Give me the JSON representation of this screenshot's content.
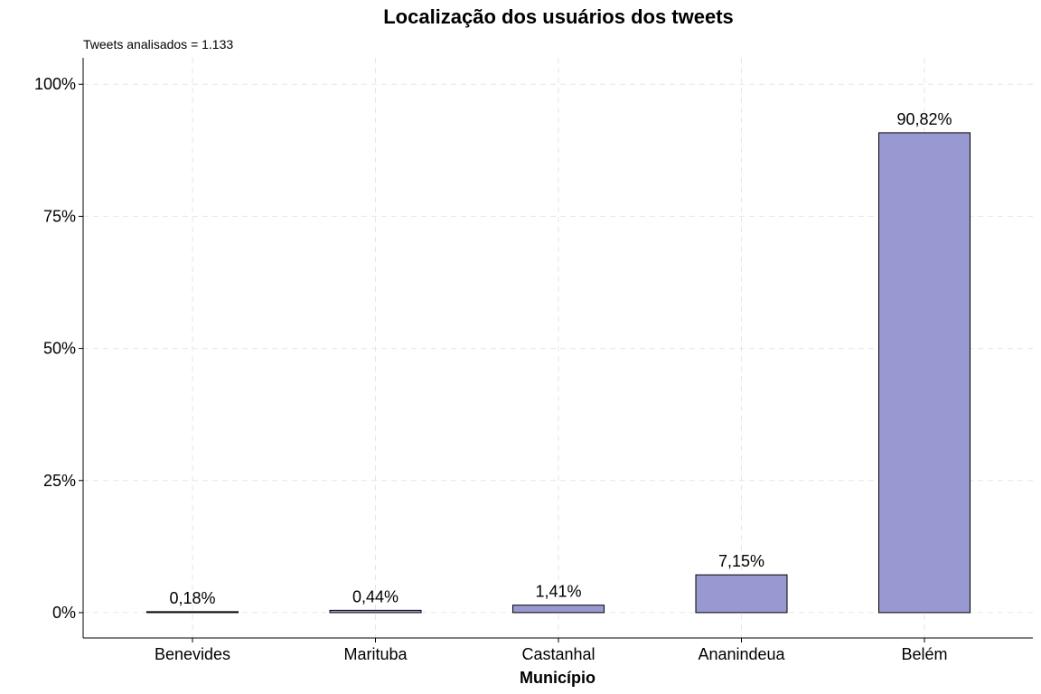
{
  "chart_data": {
    "type": "bar",
    "title": "Localização dos usuários dos tweets",
    "subtitle": "Tweets analisados = 1.133",
    "xlabel": "Município",
    "ylabel": "",
    "categories": [
      "Benevides",
      "Marituba",
      "Castanhal",
      "Ananindeua",
      "Belém"
    ],
    "values": [
      0.18,
      0.44,
      1.41,
      7.15,
      90.82
    ],
    "data_labels": [
      "0,18%",
      "0,44%",
      "1,41%",
      "7,15%",
      "90,82%"
    ],
    "yticks": [
      0,
      25,
      50,
      75,
      100
    ],
    "ytick_labels": [
      "0%",
      "25%",
      "50%",
      "75%",
      "100%"
    ],
    "ylim": [
      -4.8,
      105
    ],
    "grid": true,
    "legend": "none",
    "bar_color": "#9999D1",
    "bar_edge_color": "#000000"
  }
}
